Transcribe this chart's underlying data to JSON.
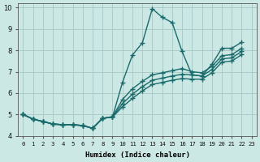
{
  "xlabel": "Humidex (Indice chaleur)",
  "background_color": "#cce8e5",
  "grid_color": "#aaccca",
  "line_color": "#1a6b6b",
  "xlim": [
    -0.5,
    23.5
  ],
  "ylim": [
    4,
    10.2
  ],
  "xtick_labels": [
    "0",
    "1",
    "2",
    "3",
    "4",
    "5",
    "6",
    "7",
    "8",
    "9",
    "10",
    "11",
    "12",
    "13",
    "14",
    "15",
    "16",
    "17",
    "18",
    "19",
    "20",
    "21",
    "22",
    "23"
  ],
  "ytick_labels": [
    "4",
    "5",
    "6",
    "7",
    "8",
    "9",
    "10"
  ],
  "yticks": [
    4,
    5,
    6,
    7,
    8,
    9,
    10
  ],
  "series": [
    [
      5.0,
      4.78,
      4.67,
      4.55,
      4.52,
      4.52,
      4.48,
      4.35,
      4.82,
      4.88,
      6.5,
      7.78,
      8.35,
      9.95,
      9.55,
      9.3,
      7.95,
      6.85,
      6.8,
      7.35,
      8.1,
      8.1,
      8.38
    ],
    [
      5.0,
      4.78,
      4.67,
      4.55,
      4.52,
      4.52,
      4.48,
      4.35,
      4.82,
      4.88,
      5.7,
      6.2,
      6.55,
      6.85,
      6.95,
      7.05,
      7.15,
      7.0,
      6.95,
      7.25,
      7.75,
      7.8,
      8.1
    ],
    [
      5.0,
      4.78,
      4.67,
      4.55,
      4.52,
      4.52,
      4.48,
      4.35,
      4.82,
      4.88,
      5.5,
      5.95,
      6.3,
      6.6,
      6.7,
      6.8,
      6.88,
      6.85,
      6.8,
      7.1,
      7.6,
      7.65,
      7.95
    ],
    [
      5.0,
      4.78,
      4.67,
      4.55,
      4.52,
      4.52,
      4.48,
      4.35,
      4.82,
      4.88,
      5.35,
      5.75,
      6.1,
      6.4,
      6.5,
      6.6,
      6.68,
      6.65,
      6.65,
      6.95,
      7.45,
      7.5,
      7.8
    ]
  ],
  "marker": "+",
  "marker_size": 4,
  "line_width": 1.0
}
